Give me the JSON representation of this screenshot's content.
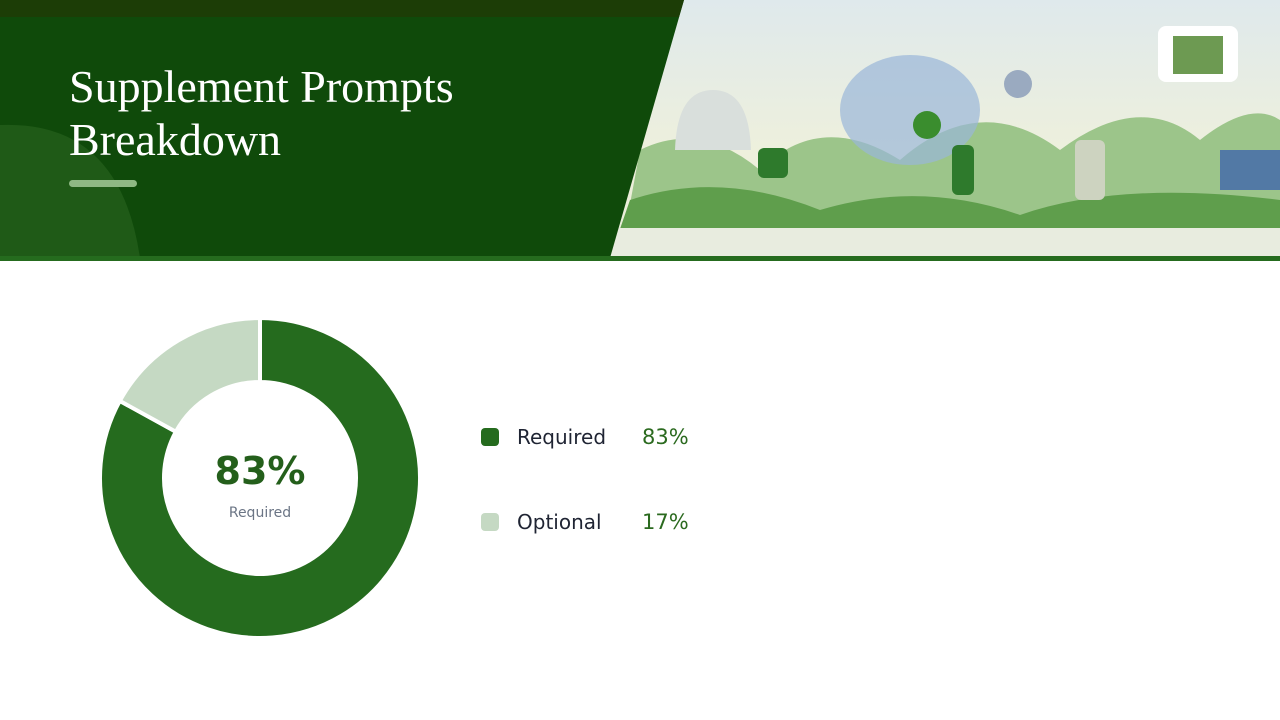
{
  "chart_data": {
    "type": "donut",
    "title": "Supplement Prompts Breakdown",
    "categories": [
      "Required",
      "Optional"
    ],
    "values": [
      83,
      17
    ],
    "value_labels": [
      "83%",
      "17%"
    ],
    "colors": [
      "#256b1e",
      "#c5d9c3"
    ]
  }
}
